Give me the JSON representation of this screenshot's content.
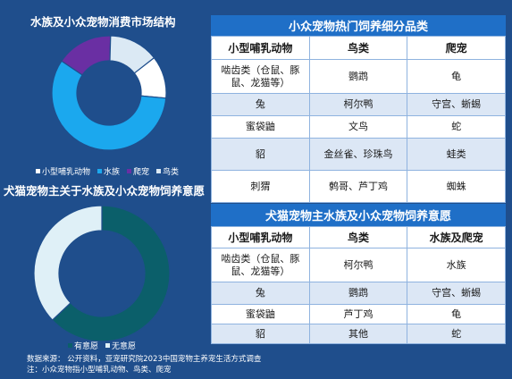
{
  "chart_data": [
    {
      "type": "pie",
      "title": "水族及小众宠物消费市场结构",
      "categories": [
        "小型哺乳动物",
        "水族",
        "爬宠",
        "鸟类"
      ],
      "values": [
        12,
        58,
        16,
        14
      ],
      "colors": [
        "#ffffff",
        "#1ba8ee",
        "#6a2fa3",
        "#dbe9f4"
      ]
    },
    {
      "type": "pie",
      "title": "犬猫宠物主关于水族及小众宠物饲养意愿",
      "categories": [
        "有意愿",
        "无意愿"
      ],
      "values": [
        63,
        37
      ],
      "colors": [
        "#0b5f6a",
        "#dff0f7"
      ]
    }
  ],
  "table1": {
    "title": "小众宠物热门饲养细分品类",
    "headers": [
      "小型哺乳动物",
      "鸟类",
      "爬宠"
    ],
    "rows": [
      [
        "啮齿类（仓鼠、豚鼠、龙猫等）",
        "鹦鹉",
        "龟"
      ],
      [
        "兔",
        "柯尔鸭",
        "守宫、蜥蜴"
      ],
      [
        "蜜袋鼬",
        "文鸟",
        "蛇"
      ],
      [
        "貂",
        "金丝雀、珍珠鸟",
        "蛙类"
      ],
      [
        "刺猬",
        "鹩哥、芦丁鸡",
        "蜘蛛"
      ]
    ]
  },
  "table2": {
    "title": "犬猫宠物主水族及小众宠物饲养意愿",
    "headers": [
      "小型哺乳动物",
      "鸟类",
      "水族及爬宠"
    ],
    "rows": [
      [
        "啮齿类（仓鼠、豚鼠、龙猫等）",
        "柯尔鸭",
        "水族"
      ],
      [
        "兔",
        "鹦鹉",
        "守宫、蜥蜴"
      ],
      [
        "蜜袋鼬",
        "芦丁鸡",
        "龟"
      ],
      [
        "貂",
        "其他",
        "蛇"
      ]
    ]
  },
  "footer": {
    "source": "数据来源： 公开资料，亚宠研究院2023中国宠物主养宠生活方式调查",
    "note": "注：小众宠物指小型哺乳动物、鸟类、爬宠"
  }
}
